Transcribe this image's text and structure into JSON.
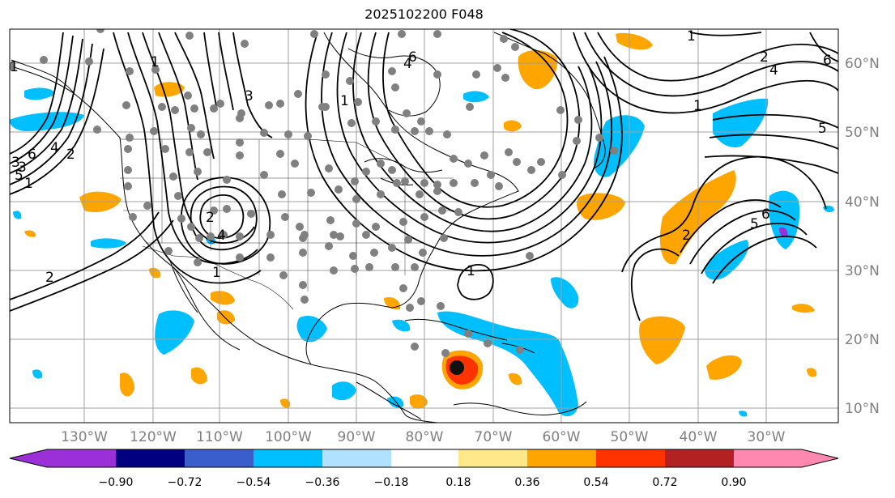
{
  "title": "2025102200 F048",
  "longitude_labels": [
    "130°W",
    "120°W",
    "110°W",
    "100°W",
    "90°W",
    "80°W",
    "70°W",
    "60°W",
    "50°W",
    "40°W",
    "30°W"
  ],
  "latitude_labels": [
    "60°N",
    "50°N",
    "40°N",
    "30°N",
    "20°N",
    "10°N"
  ],
  "colorbar": {
    "ticks": [
      "−0.90",
      "−0.72",
      "−0.54",
      "−0.36",
      "−0.18",
      "0.18",
      "0.36",
      "0.54",
      "0.72",
      "0.90"
    ],
    "colors": [
      "#9b30d9",
      "#000080",
      "#3a5fcd",
      "#00bfff",
      "#b0e2ff",
      "#ffffff",
      "#ffe88a",
      "#ffa500",
      "#ff3300",
      "#b22222",
      "#ff88b0"
    ]
  },
  "contour_labels": [
    "1",
    "2",
    "3",
    "4",
    "5",
    "6",
    "1",
    "2",
    "3",
    "4",
    "1",
    "1",
    "1",
    "2",
    "4",
    "6",
    "5",
    "1",
    "2",
    "1",
    "6",
    "5",
    "1",
    "2",
    "3",
    "4",
    "6"
  ],
  "colors": {
    "positive_fill": "#ffa500",
    "negative_fill": "#00bfff",
    "hurricane_core": "#ff3300",
    "station_dot": "#808080",
    "grid": "#a0a0a0"
  }
}
